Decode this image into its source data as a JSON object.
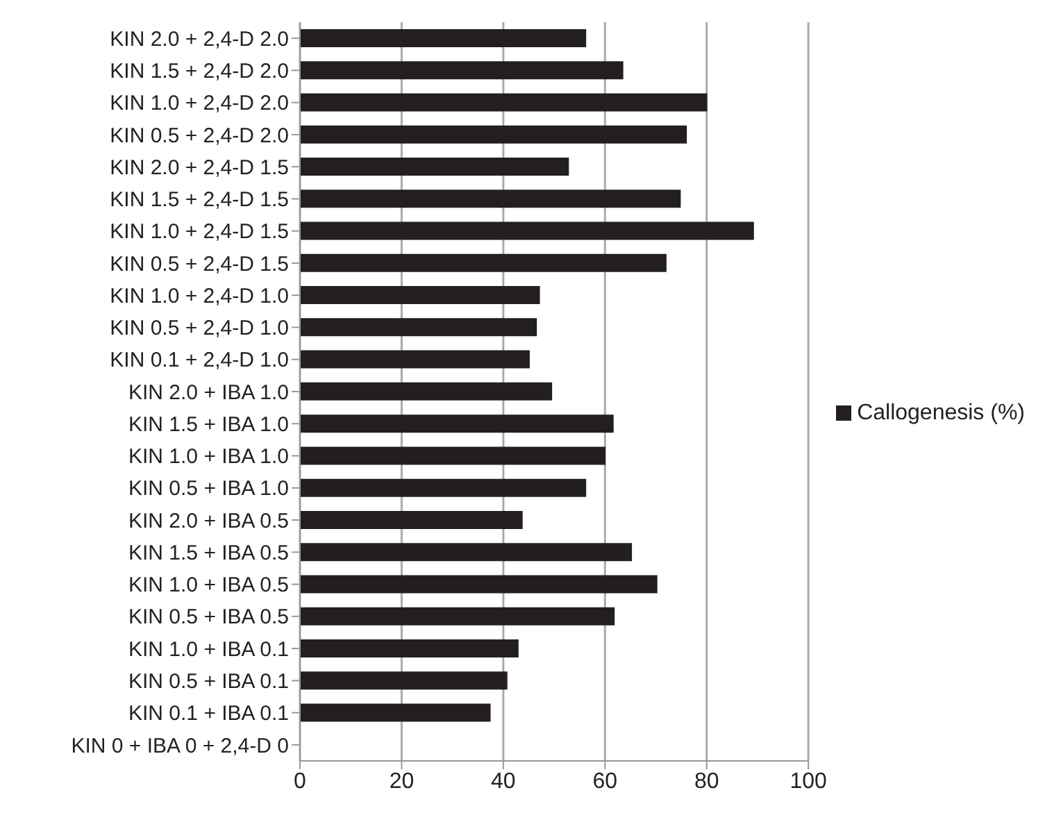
{
  "chart_data": {
    "type": "bar",
    "orientation": "horizontal",
    "categories": [
      "KIN 2.0 + 2,4-D 2.0",
      "KIN 1.5 + 2,4-D 2.0",
      "KIN 1.0 + 2,4-D 2.0",
      "KIN 0.5 + 2,4-D 2.0",
      "KIN 2.0 + 2,4-D 1.5",
      "KIN 1.5 + 2,4-D 1.5",
      "KIN 1.0 + 2,4-D 1.5",
      "KIN 0.5 + 2,4-D 1.5",
      "KIN 1.0 + 2,4-D 1.0",
      "KIN 0.5 + 2,4-D 1.0",
      "KIN 0.1 + 2,4-D 1.0",
      "KIN 2.0 + IBA 1.0",
      "KIN 1.5 + IBA 1.0",
      "KIN 1.0 + IBA 1.0",
      "KIN 0.5 + IBA 1.0",
      "KIN 2.0 + IBA 0.5",
      "KIN 1.5 + IBA 0.5",
      "KIN 1.0 + IBA 0.5",
      "KIN 0.5 + IBA 0.5",
      "KIN 1.0 + IBA 0.1",
      "KIN 0.5 + IBA 0.1",
      "KIN 0.1 + IBA 0.1",
      "KIN 0 + IBA 0 + 2,4-D 0"
    ],
    "series": [
      {
        "name": "Callogenesis (%)",
        "color": "#231f20",
        "values": [
          56.3,
          63.6,
          80.1,
          76.1,
          52.9,
          74.9,
          89.3,
          72.1,
          47.2,
          46.6,
          45.2,
          49.6,
          61.7,
          60.1,
          56.3,
          43.8,
          65.3,
          70.3,
          61.9,
          43.0,
          40.8,
          37.5,
          0
        ]
      }
    ],
    "xlim": [
      0,
      100
    ],
    "xticks": [
      0,
      20,
      40,
      60,
      80,
      100
    ],
    "grid": "x",
    "legend": "right"
  }
}
